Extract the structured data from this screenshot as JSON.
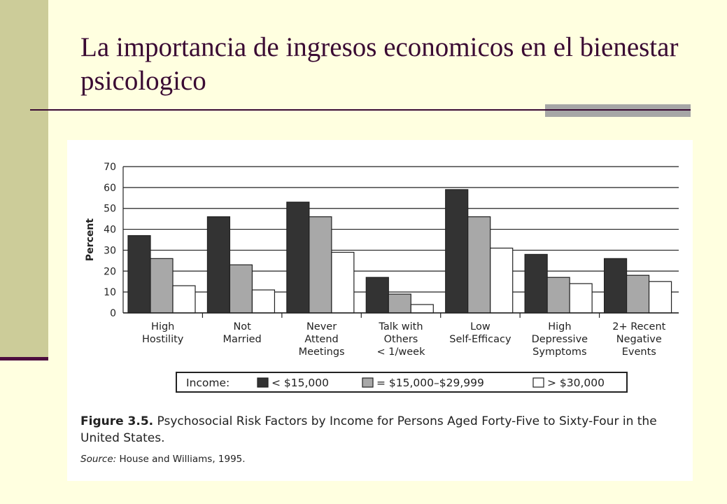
{
  "slide": {
    "title": "La importancia de ingresos economicos en el bienestar psicologico"
  },
  "figure": {
    "caption_label": "Figure 3.5.",
    "caption_text": "Psychosocial Risk Factors by Income for Persons Aged Forty-Five to Sixty-Four in the United States.",
    "source_label": "Source:",
    "source_text": "House and Williams, 1995."
  },
  "chart_data": {
    "type": "bar",
    "ylabel": "Percent",
    "xlabel": "",
    "ylim": [
      0,
      70
    ],
    "yticks": [
      0,
      10,
      20,
      30,
      40,
      50,
      60,
      70
    ],
    "grid": true,
    "legend_position": "bottom",
    "legend_title": "Income:",
    "categories": [
      [
        "High",
        "Hostility"
      ],
      [
        "Not",
        "Married"
      ],
      [
        "Never",
        "Attend",
        "Meetings"
      ],
      [
        "Talk with",
        "Others",
        "< 1/week"
      ],
      [
        "Low",
        "Self-Efficacy"
      ],
      [
        "High",
        "Depressive",
        "Symptoms"
      ],
      [
        "2+ Recent",
        "Negative",
        "Events"
      ]
    ],
    "series": [
      {
        "name": "< $15,000",
        "color": "#333333",
        "values": [
          37,
          46,
          53,
          17,
          59,
          28,
          26
        ]
      },
      {
        "name": "= $15,000–$29,999",
        "color": "#a8a8a8",
        "values": [
          26,
          23,
          46,
          9,
          46,
          17,
          18
        ]
      },
      {
        "name": "> $30,000",
        "color": "#ffffff",
        "values": [
          13,
          11,
          29,
          4,
          31,
          14,
          15
        ]
      }
    ]
  }
}
